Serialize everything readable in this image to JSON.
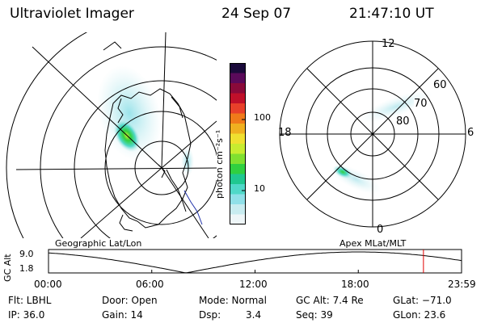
{
  "header": {
    "title": "Ultraviolet Imager",
    "date": "24 Sep 07",
    "time": "21:47:10 UT"
  },
  "colorbar": {
    "unit_label": "photon cm⁻²s⁻¹",
    "ticks": [
      {
        "label": "100",
        "value": 100
      },
      {
        "label": "10",
        "value": 10
      }
    ],
    "colors": [
      "#1a0a3a",
      "#5a0a5a",
      "#8a0a3a",
      "#c0102a",
      "#e8402a",
      "#f07a1a",
      "#f0b020",
      "#f0e030",
      "#c8ec30",
      "#80e030",
      "#30d040",
      "#20c890",
      "#50d8c8",
      "#90e0e8",
      "#c8ecf0",
      "#eef6f8"
    ]
  },
  "left_panel": {
    "label": "Geographic Lat/Lon"
  },
  "right_panel": {
    "label": "Apex MLat/MLT",
    "mlt_labels": {
      "top": "12",
      "right": "6",
      "bottom": "0",
      "left": "18"
    },
    "lat_labels": [
      "60",
      "70",
      "80"
    ]
  },
  "timeline": {
    "ylabel": "GC Alt",
    "yticks": [
      "9.0",
      "1.8"
    ],
    "xticks": [
      "00:00",
      "06:00",
      "12:00",
      "18:00",
      "23:59"
    ],
    "marker_time_hours": 21.786,
    "marker_color": "#e00000"
  },
  "info": {
    "filter": "Flt: LBHL",
    "ip": "IP: 36.0",
    "door": "Door: Open",
    "gain": "Gain: 14",
    "mode": "Mode: Normal",
    "dsp_label": "Dsp:",
    "dsp_value": "3.4",
    "gcalt": "GC Alt: 7.4 Re",
    "seq": "Seq: 39",
    "glat": "GLat: −71.0",
    "glon": "GLon: 23.6"
  }
}
